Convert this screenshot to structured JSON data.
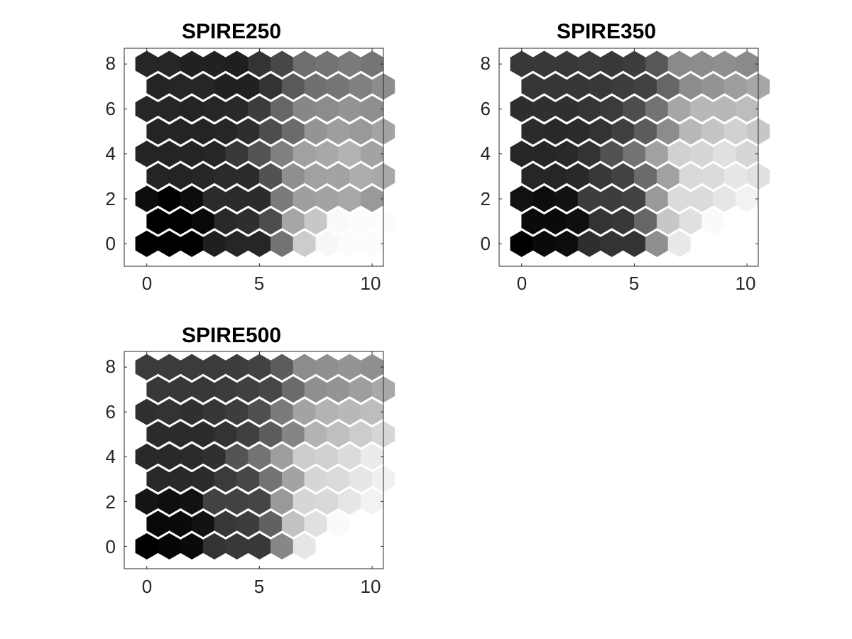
{
  "chart_data": [
    {
      "type": "heatmap",
      "title": "SPIRE250",
      "grid_shape": "hexagonal",
      "x_range": [
        -1,
        10.5
      ],
      "y_range": [
        -1,
        8.7
      ],
      "x_ticks": [
        "0",
        "5",
        "10"
      ],
      "y_ticks": [
        "0",
        "2",
        "4",
        "6",
        "8"
      ],
      "colormap": "grayscale (black = low, white = high)",
      "rows": [
        [
          0.0,
          0.0,
          0.0,
          0.12,
          0.15,
          0.15,
          0.45,
          0.8,
          0.97,
          0.99,
          0.99
        ],
        [
          0.0,
          0.0,
          0.03,
          0.16,
          0.18,
          0.3,
          0.65,
          0.78,
          0.98,
          0.99,
          0.99
        ],
        [
          0.05,
          0.0,
          0.05,
          0.17,
          0.17,
          0.17,
          0.48,
          0.62,
          0.64,
          0.66,
          0.6
        ],
        [
          0.14,
          0.14,
          0.15,
          0.17,
          0.17,
          0.32,
          0.56,
          0.63,
          0.64,
          0.68,
          0.66
        ],
        [
          0.14,
          0.14,
          0.14,
          0.15,
          0.22,
          0.33,
          0.5,
          0.63,
          0.66,
          0.7,
          0.64
        ],
        [
          0.14,
          0.14,
          0.14,
          0.15,
          0.18,
          0.3,
          0.42,
          0.58,
          0.62,
          0.6,
          0.64
        ],
        [
          0.15,
          0.15,
          0.14,
          0.15,
          0.16,
          0.24,
          0.4,
          0.53,
          0.55,
          0.58,
          0.56
        ],
        [
          0.14,
          0.15,
          0.15,
          0.13,
          0.13,
          0.2,
          0.35,
          0.44,
          0.46,
          0.5,
          0.55
        ],
        [
          0.15,
          0.15,
          0.13,
          0.13,
          0.12,
          0.2,
          0.28,
          0.43,
          0.45,
          0.48,
          0.46
        ]
      ]
    },
    {
      "type": "heatmap",
      "title": "SPIRE350",
      "grid_shape": "hexagonal",
      "x_range": [
        -1,
        10.5
      ],
      "y_range": [
        -1,
        8.7
      ],
      "x_ticks": [
        "0",
        "5",
        "10"
      ],
      "y_ticks": [
        "0",
        "2",
        "4",
        "6",
        "8"
      ],
      "colormap": "grayscale (black = low, white = high)",
      "rows": [
        [
          0.0,
          0.04,
          0.05,
          0.18,
          0.2,
          0.2,
          0.56,
          0.91,
          1.0,
          1.0,
          1.0
        ],
        [
          0.04,
          0.04,
          0.06,
          0.2,
          0.22,
          0.4,
          0.78,
          0.88,
          0.98,
          1.0,
          1.0
        ],
        [
          0.07,
          0.05,
          0.07,
          0.24,
          0.24,
          0.26,
          0.6,
          0.86,
          0.86,
          0.9,
          0.95
        ],
        [
          0.15,
          0.15,
          0.16,
          0.22,
          0.26,
          0.42,
          0.63,
          0.85,
          0.86,
          0.9,
          0.88
        ],
        [
          0.15,
          0.15,
          0.16,
          0.2,
          0.32,
          0.45,
          0.63,
          0.82,
          0.84,
          0.88,
          0.84
        ],
        [
          0.17,
          0.16,
          0.17,
          0.2,
          0.25,
          0.36,
          0.55,
          0.72,
          0.77,
          0.82,
          0.78
        ],
        [
          0.18,
          0.19,
          0.19,
          0.21,
          0.23,
          0.3,
          0.45,
          0.65,
          0.72,
          0.72,
          0.74
        ],
        [
          0.21,
          0.21,
          0.21,
          0.22,
          0.24,
          0.26,
          0.4,
          0.55,
          0.58,
          0.62,
          0.65
        ],
        [
          0.22,
          0.22,
          0.22,
          0.23,
          0.22,
          0.24,
          0.34,
          0.54,
          0.55,
          0.56,
          0.54
        ]
      ]
    },
    {
      "type": "heatmap",
      "title": "SPIRE500",
      "grid_shape": "hexagonal",
      "x_range": [
        -1,
        10.5
      ],
      "y_range": [
        -1,
        8.7
      ],
      "x_ticks": [
        "0",
        "5",
        "10"
      ],
      "y_ticks": [
        "0",
        "2",
        "4",
        "6",
        "8"
      ],
      "colormap": "grayscale (black = low, white = high)",
      "rows": [
        [
          0.0,
          0.02,
          0.04,
          0.2,
          0.22,
          0.22,
          0.53,
          0.9,
          1.0,
          1.0,
          1.0
        ],
        [
          0.03,
          0.04,
          0.07,
          0.22,
          0.24,
          0.38,
          0.76,
          0.88,
          0.98,
          1.0,
          1.0
        ],
        [
          0.08,
          0.06,
          0.07,
          0.26,
          0.26,
          0.27,
          0.6,
          0.84,
          0.85,
          0.9,
          0.95
        ],
        [
          0.16,
          0.16,
          0.17,
          0.23,
          0.28,
          0.45,
          0.64,
          0.84,
          0.86,
          0.9,
          0.94
        ],
        [
          0.16,
          0.16,
          0.17,
          0.19,
          0.33,
          0.45,
          0.62,
          0.8,
          0.82,
          0.86,
          0.92
        ],
        [
          0.17,
          0.17,
          0.17,
          0.2,
          0.25,
          0.36,
          0.52,
          0.7,
          0.75,
          0.8,
          0.84
        ],
        [
          0.19,
          0.2,
          0.19,
          0.21,
          0.24,
          0.31,
          0.48,
          0.64,
          0.7,
          0.72,
          0.74
        ],
        [
          0.22,
          0.22,
          0.22,
          0.23,
          0.25,
          0.28,
          0.42,
          0.56,
          0.58,
          0.62,
          0.66
        ],
        [
          0.23,
          0.23,
          0.23,
          0.23,
          0.24,
          0.26,
          0.36,
          0.55,
          0.56,
          0.58,
          0.56
        ]
      ]
    }
  ]
}
